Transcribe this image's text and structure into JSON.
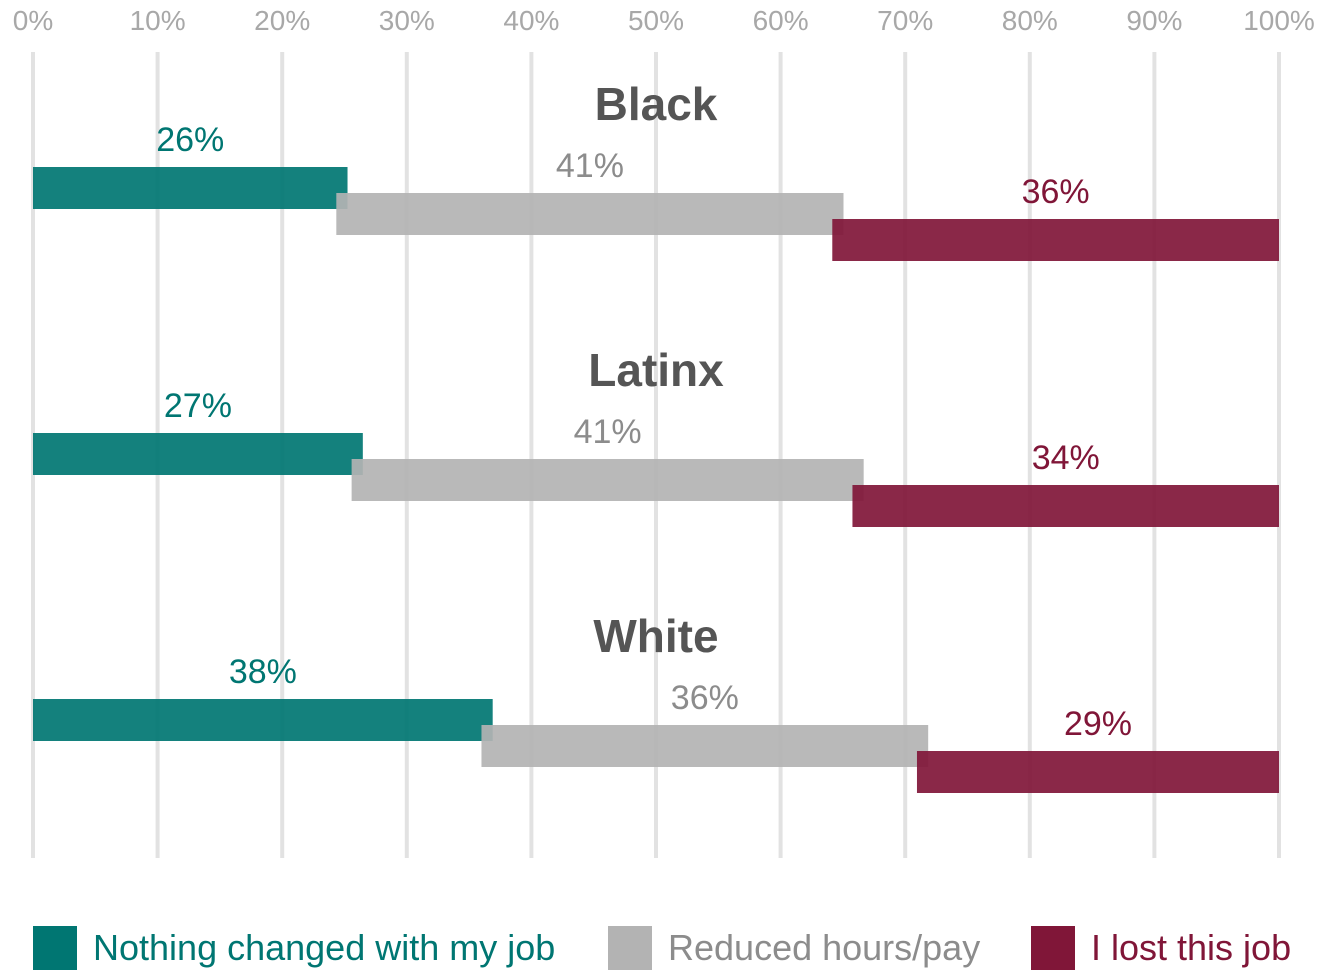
{
  "chart_data": {
    "type": "bar",
    "orientation": "horizontal",
    "stacked_offset": true,
    "x_ticks": [
      "0%",
      "10%",
      "20%",
      "30%",
      "40%",
      "50%",
      "60%",
      "70%",
      "80%",
      "90%",
      "100%"
    ],
    "xlim": [
      0,
      100
    ],
    "grid": true,
    "legend_position": "bottom",
    "categories": [
      "Black",
      "Latinx",
      "White"
    ],
    "series": [
      {
        "name": "Nothing changed with my job",
        "color": "#007672",
        "values": [
          26,
          27,
          38
        ],
        "value_labels": [
          "26%",
          "27%",
          "38%"
        ]
      },
      {
        "name": "Reduced hours/pay",
        "color": "#b3b3b3",
        "text_color": "#8c8c8c",
        "values": [
          41,
          41,
          36
        ],
        "value_labels": [
          "41%",
          "41%",
          "36%"
        ]
      },
      {
        "name": "I lost this job",
        "color": "#801638",
        "values": [
          36,
          34,
          29
        ],
        "value_labels": [
          "36%",
          "34%",
          "29%"
        ]
      }
    ]
  }
}
